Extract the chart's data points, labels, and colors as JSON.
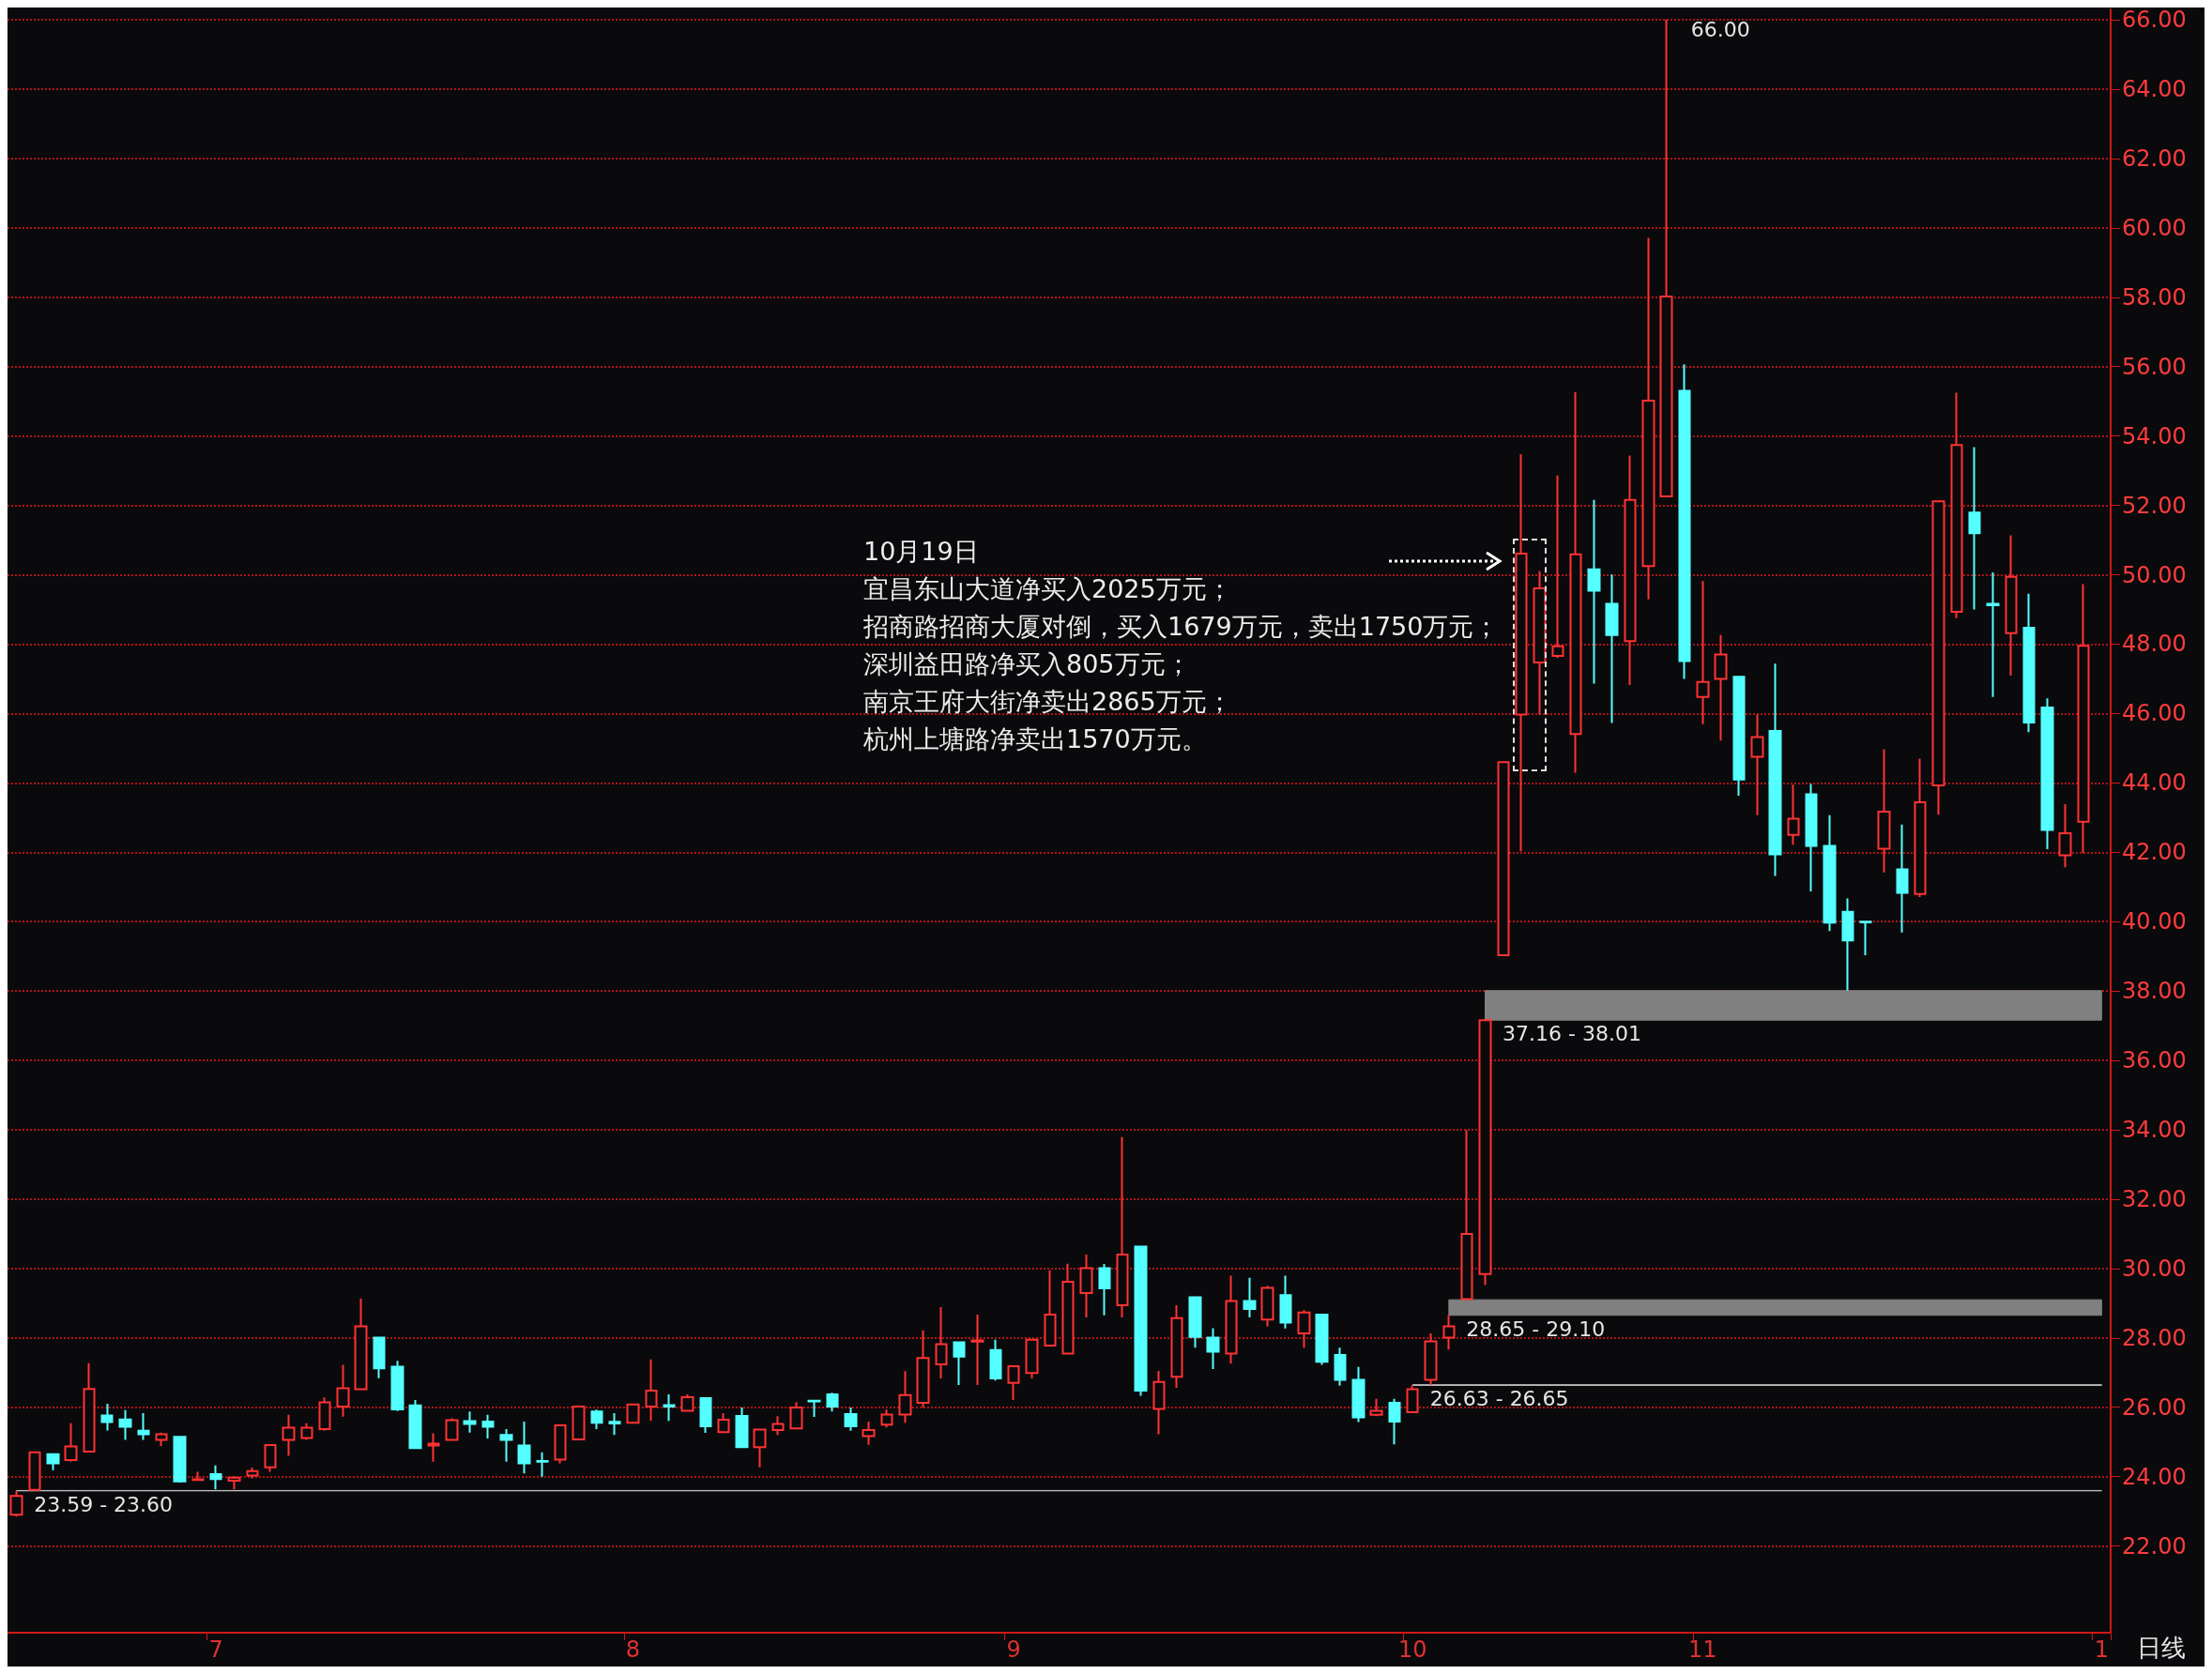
{
  "chart_data": {
    "type": "candlestick",
    "categories": [
      null,
      null,
      null,
      null,
      null,
      null,
      null,
      null,
      null,
      null,
      null,
      "7",
      null,
      null,
      null,
      null,
      null,
      null,
      null,
      null,
      null,
      null,
      null,
      null,
      null,
      null,
      null,
      null,
      null,
      null,
      null,
      null,
      null,
      null,
      "8",
      null,
      null,
      null,
      null,
      null,
      null,
      null,
      null,
      null,
      null,
      null,
      null,
      null,
      null,
      null,
      null,
      null,
      null,
      null,
      null,
      "9",
      null,
      null,
      null,
      null,
      null,
      null,
      null,
      null,
      null,
      null,
      null,
      null,
      null,
      null,
      null,
      null,
      null,
      null,
      null,
      null,
      null,
      "10",
      null,
      null,
      null,
      null,
      null,
      null,
      null,
      null,
      null,
      null,
      null,
      null,
      null,
      null,
      null,
      "11",
      null,
      null,
      null,
      null,
      null,
      null,
      null,
      null,
      null,
      null,
      null,
      null,
      null,
      null,
      null,
      null,
      null,
      null,
      null,
      null,
      null,
      "1"
    ],
    "ohlc": [
      [
        22.9,
        23.59,
        22.85,
        23.44
      ],
      [
        23.62,
        24.72,
        23.6,
        24.7
      ],
      [
        24.65,
        24.65,
        24.19,
        24.38
      ],
      [
        24.48,
        25.54,
        24.43,
        24.87
      ],
      [
        24.72,
        27.27,
        24.72,
        26.53
      ],
      [
        25.76,
        26.1,
        25.33,
        25.57
      ],
      [
        25.65,
        25.92,
        25.06,
        25.44
      ],
      [
        25.32,
        25.83,
        25.06,
        25.22
      ],
      [
        25.06,
        25.27,
        24.88,
        25.22
      ],
      [
        25.15,
        25.15,
        23.83,
        23.86
      ],
      [
        23.9,
        24.14,
        23.9,
        23.92
      ],
      [
        24.07,
        24.32,
        23.63,
        23.93
      ],
      [
        23.88,
        24.02,
        23.63,
        23.97
      ],
      [
        24.03,
        24.26,
        23.95,
        24.16
      ],
      [
        24.27,
        24.91,
        24.14,
        24.91
      ],
      [
        25.06,
        25.78,
        24.6,
        25.41
      ],
      [
        25.11,
        25.54,
        25.06,
        25.41
      ],
      [
        25.37,
        26.28,
        25.32,
        26.14
      ],
      [
        26.02,
        27.22,
        25.73,
        26.55
      ],
      [
        26.52,
        29.13,
        26.52,
        28.33
      ],
      [
        28.01,
        28.01,
        26.84,
        27.12
      ],
      [
        27.17,
        27.34,
        25.89,
        25.94
      ],
      [
        26.05,
        26.21,
        24.82,
        24.82
      ],
      [
        24.9,
        25.25,
        24.43,
        24.95
      ],
      [
        25.06,
        25.68,
        25.06,
        25.63
      ],
      [
        25.6,
        25.88,
        25.27,
        25.52
      ],
      [
        25.59,
        25.78,
        25.1,
        25.44
      ],
      [
        25.2,
        25.37,
        24.43,
        25.06
      ],
      [
        24.9,
        25.59,
        24.09,
        24.38
      ],
      [
        24.45,
        24.7,
        24.0,
        24.43
      ],
      [
        24.49,
        25.48,
        24.38,
        25.48
      ],
      [
        25.07,
        26.02,
        25.07,
        26.02
      ],
      [
        25.88,
        25.93,
        25.37,
        25.55
      ],
      [
        25.58,
        25.83,
        25.2,
        25.53
      ],
      [
        25.55,
        26.08,
        25.55,
        26.08
      ],
      [
        26.02,
        27.38,
        25.61,
        26.48
      ],
      [
        26.06,
        26.37,
        25.61,
        26.02
      ],
      [
        25.9,
        26.37,
        25.9,
        26.29
      ],
      [
        26.26,
        26.26,
        25.26,
        25.45
      ],
      [
        25.28,
        25.83,
        25.28,
        25.64
      ],
      [
        25.75,
        25.99,
        24.83,
        24.85
      ],
      [
        24.85,
        25.36,
        24.27,
        25.36
      ],
      [
        25.34,
        25.74,
        25.2,
        25.52
      ],
      [
        25.39,
        26.15,
        25.39,
        25.99
      ],
      [
        26.19,
        26.2,
        25.72,
        26.17
      ],
      [
        26.37,
        26.42,
        25.88,
        26.02
      ],
      [
        25.8,
        25.99,
        25.32,
        25.45
      ],
      [
        25.17,
        25.59,
        24.92,
        25.34
      ],
      [
        25.5,
        25.93,
        25.42,
        25.79
      ],
      [
        25.79,
        27.04,
        25.55,
        26.35
      ],
      [
        26.13,
        28.22,
        25.99,
        27.42
      ],
      [
        27.24,
        28.89,
        26.83,
        27.82
      ],
      [
        27.87,
        27.87,
        26.64,
        27.46
      ],
      [
        27.89,
        28.67,
        26.64,
        27.93
      ],
      [
        27.65,
        27.95,
        26.77,
        26.83
      ],
      [
        26.7,
        27.18,
        26.21,
        27.18
      ],
      [
        26.99,
        27.95,
        26.83,
        27.95
      ],
      [
        27.78,
        29.95,
        27.78,
        28.67
      ],
      [
        27.55,
        30.14,
        27.55,
        29.62
      ],
      [
        29.29,
        30.4,
        28.59,
        30.01
      ],
      [
        30.01,
        30.13,
        28.65,
        29.43
      ],
      [
        28.94,
        33.79,
        28.59,
        30.4
      ],
      [
        30.63,
        30.63,
        26.33,
        26.48
      ],
      [
        25.95,
        27.05,
        25.22,
        26.73
      ],
      [
        26.88,
        28.94,
        26.56,
        28.57
      ],
      [
        29.17,
        29.17,
        27.72,
        28.03
      ],
      [
        28.01,
        28.28,
        27.1,
        27.6
      ],
      [
        27.55,
        29.79,
        27.26,
        29.06
      ],
      [
        29.06,
        29.73,
        28.59,
        28.83
      ],
      [
        28.53,
        29.5,
        28.33,
        29.44
      ],
      [
        29.23,
        29.79,
        28.27,
        28.44
      ],
      [
        28.13,
        28.8,
        27.72,
        28.73
      ],
      [
        28.67,
        28.67,
        27.22,
        27.31
      ],
      [
        27.51,
        27.72,
        26.62,
        26.79
      ],
      [
        26.79,
        27.16,
        25.57,
        25.71
      ],
      [
        25.78,
        26.24,
        25.74,
        25.9
      ],
      [
        26.13,
        26.24,
        24.93,
        25.59
      ],
      [
        25.86,
        26.63,
        25.86,
        26.52
      ],
      [
        26.79,
        28.13,
        26.65,
        27.9
      ],
      [
        28.01,
        28.65,
        27.66,
        28.33
      ],
      [
        29.12,
        33.99,
        29.1,
        31.0
      ],
      [
        29.84,
        37.16,
        29.52,
        37.16
      ],
      [
        39.03,
        44.6,
        39.03,
        44.6
      ],
      [
        45.97,
        53.48,
        42.03,
        50.61
      ],
      [
        47.47,
        50.1,
        45.97,
        49.61
      ],
      [
        47.66,
        52.86,
        47.6,
        47.94
      ],
      [
        45.41,
        55.26,
        44.29,
        50.59
      ],
      [
        50.16,
        52.16,
        46.86,
        49.54
      ],
      [
        49.16,
        50.01,
        45.73,
        48.26
      ],
      [
        48.09,
        53.44,
        46.82,
        52.16
      ],
      [
        50.25,
        59.71,
        49.29,
        55.02
      ],
      [
        52.26,
        66.0,
        52.26,
        58.02
      ],
      [
        55.3,
        56.07,
        47.0,
        47.51
      ],
      [
        46.48,
        49.82,
        45.69,
        46.91
      ],
      [
        47.0,
        48.26,
        45.22,
        47.7
      ],
      [
        47.06,
        47.06,
        43.63,
        44.1
      ],
      [
        44.75,
        45.97,
        43.07,
        45.32
      ],
      [
        45.5,
        47.44,
        41.32,
        41.94
      ],
      [
        42.5,
        43.95,
        42.22,
        42.97
      ],
      [
        43.67,
        43.97,
        40.87,
        42.18
      ],
      [
        42.18,
        43.07,
        39.73,
        39.97
      ],
      [
        40.28,
        40.67,
        38.01,
        39.46
      ],
      [
        40.0,
        40.0,
        39.03,
        39.98
      ],
      [
        42.1,
        44.97,
        41.42,
        43.17
      ],
      [
        41.51,
        42.8,
        39.69,
        40.83
      ],
      [
        40.8,
        44.7,
        40.71,
        43.44
      ],
      [
        43.93,
        52.12,
        43.08,
        52.12
      ],
      [
        48.93,
        55.25,
        48.75,
        53.74
      ],
      [
        51.79,
        53.68,
        49.0,
        51.2
      ],
      [
        49.16,
        50.07,
        46.48,
        49.12
      ],
      [
        48.32,
        51.14,
        47.09,
        49.94
      ],
      [
        48.47,
        49.45,
        45.46,
        45.74
      ],
      [
        46.17,
        46.44,
        42.09,
        42.64
      ],
      [
        41.91,
        43.39,
        41.57,
        42.55
      ],
      [
        42.88,
        49.73,
        41.98,
        47.95
      ],
      null
    ],
    "colors": [
      "#ff3232",
      "#ff3232",
      "#54ffff",
      "#ff3232",
      "#ff3232",
      "#54ffff",
      "#54ffff",
      "#54ffff",
      "#ff3232",
      "#54ffff",
      "#ff3232",
      "#54ffff",
      "#ff3232",
      "#ff3232",
      "#ff3232",
      "#ff3232",
      "#ff3232",
      "#ff3232",
      "#ff3232",
      "#ff3232",
      "#54ffff",
      "#54ffff",
      "#54ffff",
      "#ff3232",
      "#ff3232",
      "#54ffff",
      "#54ffff",
      "#54ffff",
      "#54ffff",
      "#54ffff",
      "#ff3232",
      "#ff3232",
      "#54ffff",
      "#54ffff",
      "#ff3232",
      "#ff3232",
      "#54ffff",
      "#ff3232",
      "#54ffff",
      "#ff3232",
      "#54ffff",
      "#ff3232",
      "#ff3232",
      "#ff3232",
      "#54ffff",
      "#54ffff",
      "#54ffff",
      "#ff3232",
      "#ff3232",
      "#ff3232",
      "#ff3232",
      "#ff3232",
      "#54ffff",
      "#ff3232",
      "#54ffff",
      "#ff3232",
      "#ff3232",
      "#ff3232",
      "#ff3232",
      "#ff3232",
      "#54ffff",
      "#ff3232",
      "#54ffff",
      "#ff3232",
      "#ff3232",
      "#54ffff",
      "#54ffff",
      "#ff3232",
      "#54ffff",
      "#ff3232",
      "#54ffff",
      "#ff3232",
      "#54ffff",
      "#54ffff",
      "#54ffff",
      "#ff3232",
      "#54ffff",
      "#ff3232",
      "#ff3232",
      "#ff3232",
      "#ff3232",
      "#ff3232",
      "#ff3232",
      "#ff3232",
      "#ff3232",
      "#ff3232",
      "#ff3232",
      "#54ffff",
      "#54ffff",
      "#ff3232",
      "#ff3232",
      "#ff3232",
      "#54ffff",
      "#ff3232",
      "#ff3232",
      "#54ffff",
      "#ff3232",
      "#54ffff",
      "#ff3232",
      "#54ffff",
      "#54ffff",
      "#54ffff",
      "#54ffff",
      "#ff3232",
      "#54ffff",
      "#ff3232",
      "#ff3232",
      "#ff3232",
      "#54ffff",
      "#54ffff",
      "#ff3232",
      "#54ffff",
      "#54ffff",
      "#ff3232",
      "#ff3232",
      null
    ],
    "ylim": [
      19.5,
      66.3
    ],
    "yticks": [
      {
        "value": 22,
        "label": "22.00"
      },
      {
        "value": 24,
        "label": "24.00"
      },
      {
        "value": 26,
        "label": "26.00"
      },
      {
        "value": 28,
        "label": "28.00"
      },
      {
        "value": 30,
        "label": "30.00"
      },
      {
        "value": 32,
        "label": "32.00"
      },
      {
        "value": 34,
        "label": "34.00"
      },
      {
        "value": 36,
        "label": "36.00"
      },
      {
        "value": 38,
        "label": "38.00"
      },
      {
        "value": 40,
        "label": "40.00"
      },
      {
        "value": 42,
        "label": "42.00"
      },
      {
        "value": 44,
        "label": "44.00"
      },
      {
        "value": 46,
        "label": "46.00"
      },
      {
        "value": 48,
        "label": "48.00"
      },
      {
        "value": 50,
        "label": "50.00"
      },
      {
        "value": 52,
        "label": "52.00"
      },
      {
        "value": 54,
        "label": "54.00"
      },
      {
        "value": 56,
        "label": "56.00"
      },
      {
        "value": 58,
        "label": "58.00"
      },
      {
        "value": 60,
        "label": "60.00"
      },
      {
        "value": 62,
        "label": "62.00"
      },
      {
        "value": 64,
        "label": "64.00"
      },
      {
        "value": 66,
        "label": "66.00"
      }
    ],
    "grid": "y",
    "bands": [
      {
        "axis": "y",
        "from": 23.59,
        "to": 23.6,
        "label": "23.59 - 23.60",
        "color": "#c0c0c0"
      },
      {
        "axis": "y",
        "from": 26.63,
        "to": 26.65,
        "label": "26.63 - 26.65",
        "color": "#c0c0c0"
      },
      {
        "axis": "y",
        "from": 28.65,
        "to": 29.1,
        "label": "28.65 - 29.10",
        "color": "#808080"
      },
      {
        "axis": "y",
        "from": 37.16,
        "to": 38.01,
        "label": "37.16 - 38.01",
        "color": "#808080"
      }
    ],
    "annotations": [
      "66.00",
      "10月19日",
      "宜昌东山大道净买入2025万元；",
      "招商路招商大厦对倒，买入1679万元，卖出1750万元；",
      "深圳益田路净买入805万元；",
      "南京王府大街净卖出2865万元；",
      "杭州上塘路净卖出1570万元。",
      "日线"
    ]
  }
}
